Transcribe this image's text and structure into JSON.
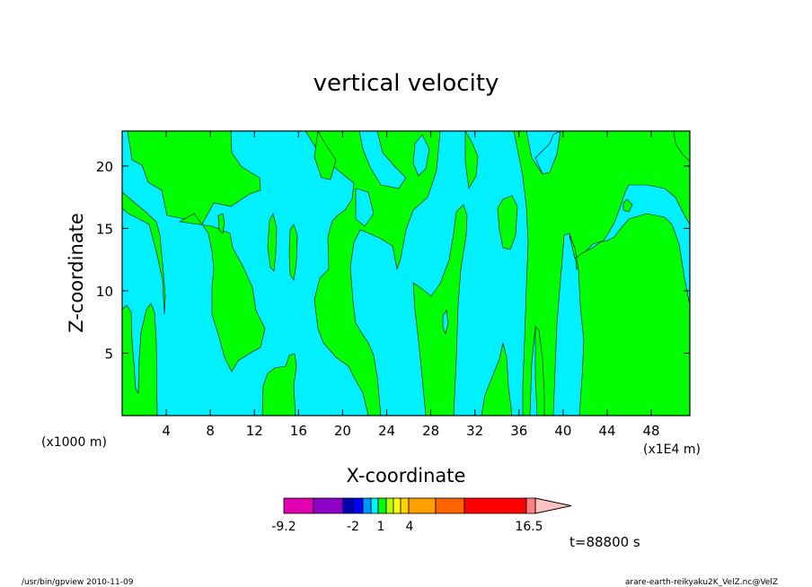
{
  "chart_data": {
    "type": "heatmap",
    "title": "vertical velocity",
    "xlabel": "X-coordinate",
    "ylabel": "Z-coordinate",
    "x_multiplier_label": "(x1000 m)",
    "x_unit_label": "(x1E4 m)",
    "xlim": [
      0,
      51.5
    ],
    "ylim": [
      0,
      22.8
    ],
    "x_ticks": [
      4,
      8,
      12,
      16,
      20,
      24,
      28,
      32,
      36,
      40,
      44,
      48
    ],
    "y_ticks": [
      5,
      10,
      15,
      20
    ],
    "grid": false,
    "colorbar": {
      "colors": [
        "#e000b0",
        "#8c00c8",
        "#0000b4",
        "#0000ff",
        "#0096ff",
        "#00f0ff",
        "#00ff00",
        "#b4ff00",
        "#ffff00",
        "#ffd200",
        "#ffa000",
        "#ff6400",
        "#ff0000",
        "#ff8080",
        "#ffc0c0"
      ],
      "tick_labels": [
        "-9.2",
        "-2",
        "1",
        "4",
        "16.5"
      ],
      "min": -9.2,
      "max": 16.5
    },
    "visible_fill_colors": [
      "#00f0ff",
      "#00ff00"
    ],
    "shading_colors": {
      "positive": "#00ff00",
      "negative": "#00f0ff"
    },
    "time_label": "t=88800 s"
  },
  "footer": {
    "left": "/usr/bin/gpview  2010-11-09",
    "right": "arare-earth-reikyaku2K_VelZ.nc@VelZ"
  }
}
